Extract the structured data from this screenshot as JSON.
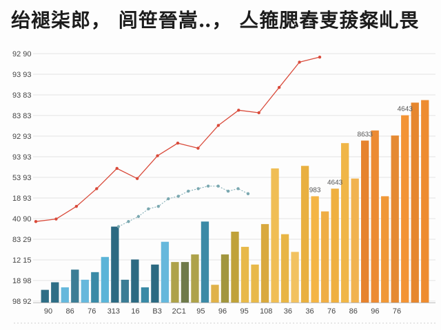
{
  "chart_data": {
    "type": "bar",
    "title": "绐褪柒郎，  闾笹晉嵩‥， 亼箍腮舂叓菝粲乢畏",
    "xlabel": "",
    "ylabel": "",
    "ylim": [
      0,
      100
    ],
    "grid": true,
    "y_tick_labels": [
      "92 90",
      "93 93",
      "93 83",
      "83 83",
      "92 93",
      "93 93",
      "53 93",
      "18 93",
      "40 90",
      "83 29",
      "12 15",
      "18 98",
      "98 92"
    ],
    "x_tick_labels": [
      "90",
      "86",
      "76",
      "313",
      "16",
      "B3",
      "2C1",
      "95",
      "96",
      "95",
      "108",
      "36",
      "36",
      "76",
      "86",
      "96",
      "76"
    ],
    "bar_labels": [
      {
        "text": "983",
        "bar": 27
      },
      {
        "text": "4643",
        "bar": 29
      },
      {
        "text": "8633",
        "bar": 32
      },
      {
        "text": "4643",
        "bar": 36
      }
    ],
    "series": [
      {
        "name": "bars",
        "colors": [
          "#2e6e86",
          "#2e6e86",
          "#66b8dc",
          "#3c7d95",
          "#66b8dc",
          "#3a8aa6",
          "#5bb4d8",
          "#2c6a82",
          "#3c7d95",
          "#2c6a82",
          "#3a8aa6",
          "#2c6a82",
          "#66b8dc",
          "#aea24a",
          "#6f7a4a",
          "#aea24a",
          "#3c8aa6",
          "#e0b24a",
          "#a2963e",
          "#c0a23a",
          "#e8b94a",
          "#e8b94a",
          "#d9a93e",
          "#f0be55",
          "#e8b545",
          "#f2c260",
          "#e9b040",
          "#f4b545",
          "#efae45",
          "#efb040",
          "#f0b648",
          "#f1b350",
          "#e6832e",
          "#ec8b33",
          "#f09838",
          "#e58a33",
          "#f39435",
          "#e6872e",
          "#ee8c30"
        ],
        "values": [
          5,
          8,
          6,
          13,
          9,
          12,
          18,
          30,
          9,
          17,
          6,
          15,
          24,
          16,
          16,
          19,
          32,
          7,
          19,
          28,
          22,
          15,
          31,
          53,
          27,
          20,
          54,
          42,
          36,
          45,
          63,
          49,
          64,
          68,
          42,
          66,
          74,
          79,
          80
        ]
      },
      {
        "name": "trend-a",
        "color": "#d94a3a",
        "values": [
          32,
          33,
          38,
          45,
          53,
          49,
          58,
          63,
          61,
          70,
          76,
          75,
          85,
          95,
          97
        ]
      },
      {
        "name": "trend-b",
        "color": "#7aa8b0",
        "values": [
          30,
          32,
          34,
          37,
          38,
          41,
          42,
          44,
          45,
          46,
          46,
          44,
          45,
          43
        ]
      }
    ]
  }
}
